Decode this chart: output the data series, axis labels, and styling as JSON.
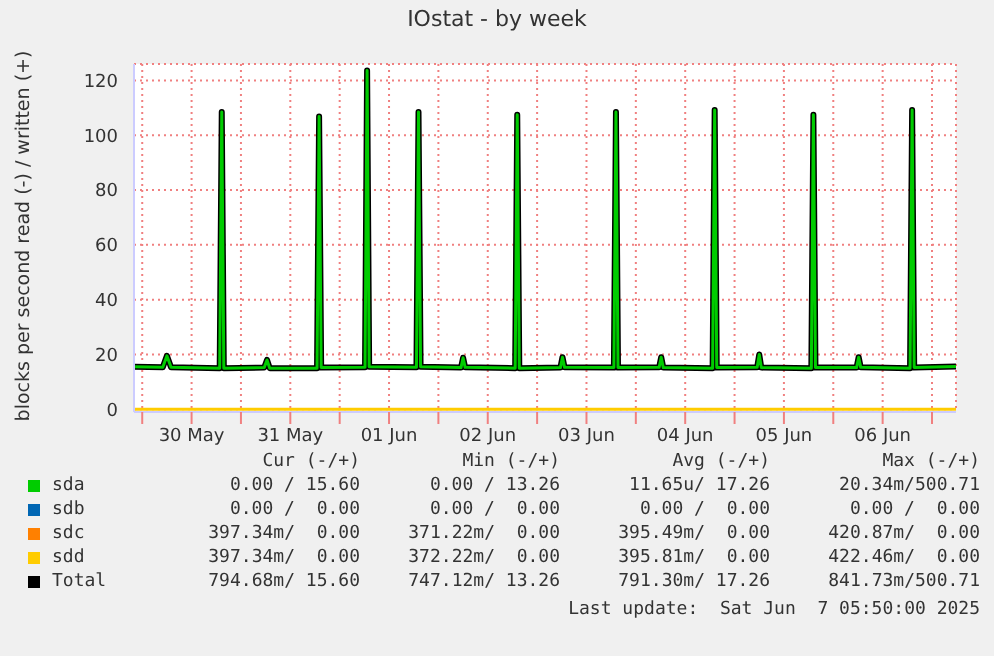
{
  "chart_data": {
    "type": "line",
    "title": "IOstat - by week",
    "ylabel": "blocks per second read (-) / written (+)",
    "x": [
      "2025-05-29T22:00",
      "2025-05-30T05:00",
      "2025-05-30T06:00",
      "2025-05-30T07:00",
      "2025-05-30T18:50",
      "2025-05-30T19:20",
      "2025-05-30T19:50",
      "2025-05-31T05:40",
      "2025-05-31T06:20",
      "2025-05-31T07:00",
      "2025-05-31T18:30",
      "2025-05-31T19:00",
      "2025-05-31T19:30",
      "2025-06-01T06:10",
      "2025-06-01T06:40",
      "2025-06-01T07:10",
      "2025-06-01T18:40",
      "2025-06-01T19:10",
      "2025-06-01T19:40",
      "2025-06-02T05:30",
      "2025-06-02T06:00",
      "2025-06-02T06:30",
      "2025-06-02T18:40",
      "2025-06-02T19:10",
      "2025-06-02T19:40",
      "2025-06-03T05:40",
      "2025-06-03T06:10",
      "2025-06-03T06:40",
      "2025-06-03T18:40",
      "2025-06-03T19:10",
      "2025-06-03T19:40",
      "2025-06-04T05:40",
      "2025-06-04T06:10",
      "2025-06-04T06:40",
      "2025-06-04T18:40",
      "2025-06-04T19:10",
      "2025-06-04T19:40",
      "2025-06-05T05:30",
      "2025-06-05T06:00",
      "2025-06-05T06:30",
      "2025-06-05T18:40",
      "2025-06-05T19:10",
      "2025-06-05T19:40",
      "2025-06-06T05:40",
      "2025-06-06T06:10",
      "2025-06-06T06:40",
      "2025-06-06T18:40",
      "2025-06-06T19:10",
      "2025-06-06T19:40",
      "2025-06-07T05:50"
    ],
    "series": [
      {
        "name": "sda",
        "color": "#00cc00",
        "values": [
          15.5,
          15.3,
          19.5,
          15.3,
          15,
          108.5,
          15,
          15.2,
          18,
          15,
          15,
          106.8,
          15.2,
          15.3,
          123.6,
          15.5,
          15.3,
          108.5,
          15.5,
          15.2,
          18.8,
          15.3,
          15,
          107.5,
          15,
          15.2,
          19,
          15.3,
          15.2,
          108.5,
          15.2,
          15.3,
          19,
          15.2,
          15,
          109.2,
          15.2,
          15.3,
          20,
          15.2,
          15,
          107.5,
          15.2,
          15.2,
          19,
          15.3,
          15,
          109.2,
          15.2,
          15.6
        ]
      },
      {
        "name": "sdb",
        "color": "#0066b3",
        "values": [
          null,
          null,
          null,
          null,
          null,
          null,
          null,
          null,
          null,
          null,
          null,
          null,
          null,
          null,
          null,
          null,
          null,
          null,
          null,
          null,
          null,
          null,
          null,
          null,
          null,
          null,
          null,
          null,
          null,
          null,
          null,
          null,
          null,
          null,
          null,
          null,
          null,
          null,
          null,
          null,
          null,
          null,
          null,
          null,
          null,
          null,
          null,
          null,
          null,
          null
        ]
      },
      {
        "name": "sdc",
        "color": "#ff8000",
        "values": [
          null,
          null,
          null,
          null,
          null,
          null,
          null,
          null,
          null,
          null,
          null,
          null,
          null,
          null,
          null,
          null,
          null,
          null,
          null,
          null,
          null,
          null,
          null,
          null,
          null,
          null,
          null,
          null,
          null,
          null,
          null,
          null,
          null,
          null,
          null,
          null,
          null,
          null,
          null,
          null,
          null,
          null,
          null,
          null,
          null,
          null,
          null,
          null,
          null,
          null
        ]
      },
      {
        "name": "sdd",
        "color": "#ffcc00",
        "values": [
          0,
          0,
          0,
          0,
          0,
          0,
          0,
          0,
          0,
          0,
          0,
          0,
          0,
          0,
          0,
          0,
          0,
          0,
          0,
          0,
          0,
          0,
          0,
          0,
          0,
          0,
          0,
          0,
          0,
          0,
          0,
          0,
          0,
          0,
          0,
          0,
          0,
          0,
          0,
          0,
          0,
          0,
          0,
          0,
          0,
          0,
          0,
          0,
          0,
          0
        ]
      },
      {
        "name": "Total",
        "color": "#000000",
        "values": [
          15.5,
          15.3,
          19.5,
          15.3,
          15,
          108.5,
          15,
          15.2,
          18,
          15,
          15,
          106.8,
          15.2,
          15.3,
          123.6,
          15.5,
          15.3,
          108.5,
          15.5,
          15.2,
          18.8,
          15.3,
          15,
          107.5,
          15,
          15.2,
          19,
          15.3,
          15.2,
          108.5,
          15.2,
          15.3,
          19,
          15.2,
          15,
          109.2,
          15.2,
          15.3,
          20,
          15.2,
          15,
          107.5,
          15.2,
          15.2,
          19,
          15.3,
          15,
          109.2,
          15.2,
          15.6
        ]
      }
    ],
    "xlim": [
      "2025-05-29T22:00",
      "2025-06-07T05:50"
    ],
    "xticks": [
      {
        "value": "2025-05-30T00:00",
        "label": null
      },
      {
        "value": "2025-05-30T12:00",
        "label": "30 May"
      },
      {
        "value": "2025-05-31T00:00",
        "label": null
      },
      {
        "value": "2025-05-31T12:00",
        "label": "31 May"
      },
      {
        "value": "2025-06-01T00:00",
        "label": null
      },
      {
        "value": "2025-06-01T12:00",
        "label": "01 Jun"
      },
      {
        "value": "2025-06-02T00:00",
        "label": null
      },
      {
        "value": "2025-06-02T12:00",
        "label": "02 Jun"
      },
      {
        "value": "2025-06-03T00:00",
        "label": null
      },
      {
        "value": "2025-06-03T12:00",
        "label": "03 Jun"
      },
      {
        "value": "2025-06-04T00:00",
        "label": null
      },
      {
        "value": "2025-06-04T12:00",
        "label": "04 Jun"
      },
      {
        "value": "2025-06-05T00:00",
        "label": null
      },
      {
        "value": "2025-06-05T12:00",
        "label": "05 Jun"
      },
      {
        "value": "2025-06-06T00:00",
        "label": null
      },
      {
        "value": "2025-06-06T12:00",
        "label": "06 Jun"
      },
      {
        "value": "2025-06-07T00:00",
        "label": null
      }
    ],
    "ylim": [
      -1,
      126
    ],
    "yticks": [
      0,
      20,
      40,
      60,
      80,
      100,
      120
    ],
    "grid": true,
    "legend": "bottom",
    "marker": "none",
    "line_style": "solid",
    "annotations": [
      "Cur (-/+)",
      "Min (-/+)",
      "Avg (-/+)",
      "Max (-/+)",
      "0.00 / 15.60",
      "0.00 / 13.26",
      "11.65u/ 17.26",
      "20.34m/500.71",
      "0.00 /  0.00",
      "0.00 /  0.00",
      "0.00 /  0.00",
      "0.00 /  0.00",
      "397.34m/  0.00",
      "371.22m/  0.00",
      "395.49m/  0.00",
      "420.87m/  0.00",
      "397.34m/  0.00",
      "372.22m/  0.00",
      "395.81m/  0.00",
      "422.46m/  0.00",
      "794.68m/ 15.60",
      "747.12m/ 13.26",
      "791.30m/ 17.26",
      "841.73m/500.71",
      "Last update:  Sat Jun  7 05:50:00 2025"
    ]
  }
}
